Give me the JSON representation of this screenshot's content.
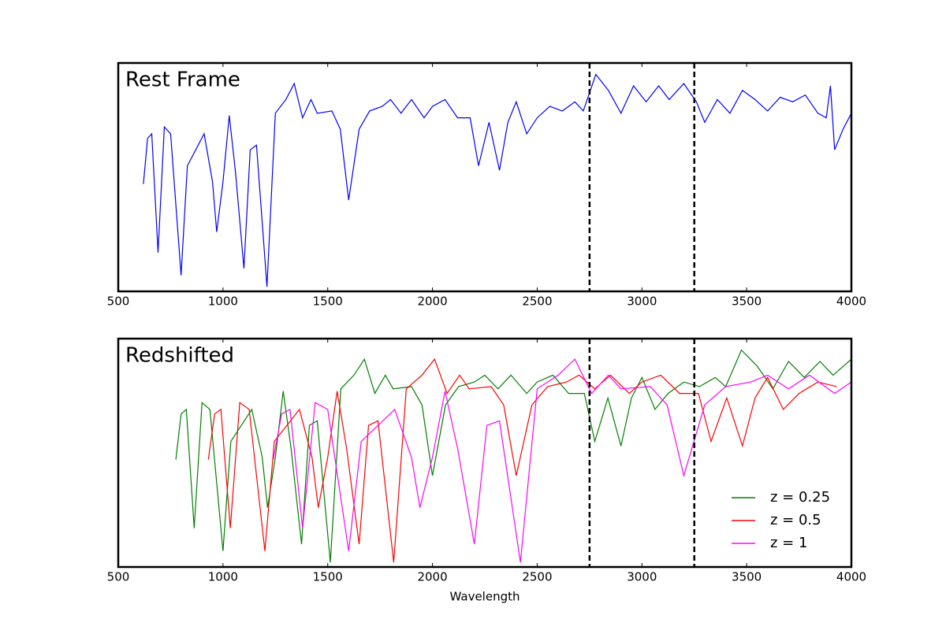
{
  "chart_data": [
    {
      "type": "line",
      "title": "Rest Frame",
      "xlim": [
        500,
        4000
      ],
      "ylim": [
        0,
        1
      ],
      "xticks": [
        500,
        1000,
        1500,
        2000,
        2500,
        3000,
        3500,
        4000
      ],
      "vlines": [
        2750,
        3250
      ],
      "series": [
        {
          "color": "#0000ff",
          "x": [
            620,
            640,
            660,
            690,
            720,
            750,
            800,
            830,
            870,
            910,
            950,
            970,
            1000,
            1030,
            1060,
            1100,
            1130,
            1160,
            1210,
            1250,
            1300,
            1340,
            1380,
            1420,
            1450,
            1520,
            1560,
            1600,
            1650,
            1700,
            1760,
            1800,
            1850,
            1900,
            1960,
            2000,
            2060,
            2120,
            2180,
            2220,
            2270,
            2320,
            2360,
            2400,
            2450,
            2500,
            2560,
            2620,
            2680,
            2720,
            2780,
            2840,
            2900,
            2960,
            3020,
            3080,
            3130,
            3200,
            3260,
            3300,
            3360,
            3420,
            3480,
            3540,
            3600,
            3660,
            3720,
            3780,
            3840,
            3880,
            3900,
            3920,
            3960,
            4000
          ],
          "values": [
            0.47,
            0.67,
            0.69,
            0.17,
            0.72,
            0.69,
            0.07,
            0.55,
            0.62,
            0.69,
            0.48,
            0.26,
            0.48,
            0.77,
            0.52,
            0.1,
            0.62,
            0.64,
            0.02,
            0.78,
            0.84,
            0.91,
            0.76,
            0.84,
            0.78,
            0.79,
            0.71,
            0.4,
            0.71,
            0.79,
            0.81,
            0.84,
            0.78,
            0.84,
            0.76,
            0.81,
            0.84,
            0.76,
            0.76,
            0.55,
            0.74,
            0.53,
            0.74,
            0.83,
            0.69,
            0.76,
            0.81,
            0.79,
            0.83,
            0.79,
            0.95,
            0.88,
            0.78,
            0.9,
            0.83,
            0.9,
            0.84,
            0.91,
            0.83,
            0.74,
            0.84,
            0.78,
            0.88,
            0.84,
            0.79,
            0.85,
            0.83,
            0.86,
            0.78,
            0.76,
            0.9,
            0.62,
            0.71,
            0.78
          ]
        }
      ]
    },
    {
      "type": "line",
      "title": "Redshifted",
      "xlabel": "Wavelength",
      "xlim": [
        500,
        4000
      ],
      "ylim": [
        0,
        1
      ],
      "xticks": [
        500,
        1000,
        1500,
        2000,
        2500,
        3000,
        3500,
        4000
      ],
      "vlines": [
        2750,
        3250
      ],
      "legend": "lower right",
      "series": [
        {
          "name": "z = 0.25",
          "color": "#008000",
          "x": [
            775,
            800,
            825,
            862.5,
            900,
            937.5,
            1000,
            1037.5,
            1087.5,
            1137.5,
            1187.5,
            1212.5,
            1250,
            1287.5,
            1325,
            1375,
            1412.5,
            1450,
            1512.5,
            1562.5,
            1625,
            1675,
            1725,
            1775,
            1812.5,
            1900,
            1950,
            2000,
            2062.5,
            2125,
            2200,
            2250,
            2312.5,
            2375,
            2450,
            2500,
            2575,
            2650,
            2725,
            2775,
            2837.5,
            2900,
            2950,
            3000,
            3062.5,
            3125,
            3200,
            3275,
            3350,
            3400,
            3475,
            3550,
            3625,
            3700,
            3775,
            3850,
            3912.5,
            4000
          ],
          "values": [
            0.47,
            0.67,
            0.69,
            0.17,
            0.72,
            0.69,
            0.07,
            0.55,
            0.62,
            0.69,
            0.48,
            0.26,
            0.48,
            0.77,
            0.52,
            0.1,
            0.62,
            0.64,
            0.02,
            0.78,
            0.84,
            0.91,
            0.76,
            0.84,
            0.78,
            0.79,
            0.71,
            0.4,
            0.71,
            0.79,
            0.81,
            0.84,
            0.78,
            0.84,
            0.76,
            0.81,
            0.84,
            0.76,
            0.76,
            0.55,
            0.74,
            0.53,
            0.74,
            0.83,
            0.69,
            0.76,
            0.81,
            0.79,
            0.83,
            0.79,
            0.95,
            0.88,
            0.78,
            0.9,
            0.83,
            0.9,
            0.84,
            0.91
          ]
        },
        {
          "name": "z = 0.5",
          "color": "#ff0000",
          "x": [
            930,
            960,
            990,
            1035,
            1080,
            1125,
            1200,
            1245,
            1305,
            1365,
            1425,
            1455,
            1500,
            1545,
            1590,
            1650,
            1695,
            1740,
            1815,
            1875,
            1950,
            2010,
            2070,
            2130,
            2175,
            2280,
            2340,
            2400,
            2475,
            2550,
            2640,
            2700,
            2775,
            2850,
            2940,
            3000,
            3090,
            3180,
            3270,
            3330,
            3405,
            3480,
            3540,
            3600,
            3675,
            3750,
            3840,
            3930
          ],
          "values": [
            0.47,
            0.67,
            0.69,
            0.17,
            0.72,
            0.69,
            0.07,
            0.55,
            0.62,
            0.69,
            0.48,
            0.26,
            0.48,
            0.77,
            0.52,
            0.1,
            0.62,
            0.64,
            0.02,
            0.78,
            0.84,
            0.91,
            0.76,
            0.84,
            0.78,
            0.79,
            0.71,
            0.4,
            0.71,
            0.79,
            0.81,
            0.84,
            0.78,
            0.84,
            0.76,
            0.81,
            0.84,
            0.76,
            0.76,
            0.55,
            0.74,
            0.53,
            0.74,
            0.83,
            0.69,
            0.76,
            0.81,
            0.79
          ]
        },
        {
          "name": "z = 1",
          "color": "#ff00ff",
          "x": [
            1240,
            1280,
            1320,
            1380,
            1440,
            1500,
            1600,
            1660,
            1740,
            1820,
            1900,
            1940,
            2000,
            2060,
            2120,
            2200,
            2260,
            2320,
            2420,
            2500,
            2600,
            2680,
            2760,
            2840,
            2900,
            3040,
            3120,
            3200,
            3300,
            3400,
            3520,
            3600,
            3700,
            3800,
            3920,
            4000
          ],
          "values": [
            0.47,
            0.67,
            0.69,
            0.17,
            0.72,
            0.69,
            0.07,
            0.55,
            0.62,
            0.69,
            0.48,
            0.26,
            0.48,
            0.77,
            0.52,
            0.1,
            0.62,
            0.64,
            0.02,
            0.78,
            0.84,
            0.91,
            0.76,
            0.84,
            0.78,
            0.79,
            0.71,
            0.4,
            0.71,
            0.79,
            0.81,
            0.84,
            0.78,
            0.84,
            0.76,
            0.81
          ]
        }
      ]
    }
  ]
}
